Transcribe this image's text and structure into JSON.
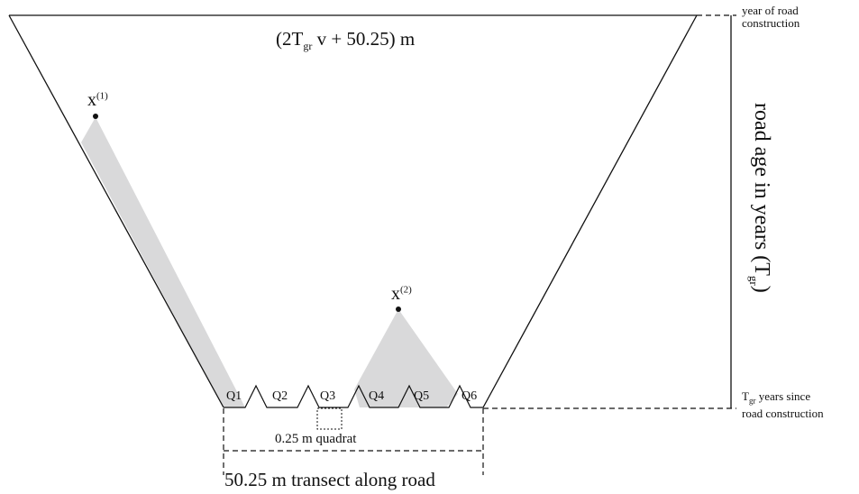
{
  "top_width_label": {
    "prefix": "(2T",
    "sub": "gr",
    "suffix": " v  + 50.25) m"
  },
  "year_label_line1": "year of road",
  "year_label_line2": "construction",
  "axis_label": {
    "main": "road age in years (T",
    "sub": "gr",
    "close": ")"
  },
  "point1": {
    "base": "x",
    "sup": "(1)"
  },
  "point2": {
    "base": "x",
    "sup": "(2)"
  },
  "quadrats": [
    "Q1",
    "Q2",
    "Q3",
    "Q4",
    "Q5",
    "Q6"
  ],
  "quadrat_size_label": "0.25 m quadrat",
  "transect_label": "50.25 m transect along road",
  "bottom_right_label": {
    "sub": "gr",
    "prefix": "T",
    "line1_rest": " years since",
    "line2": "road construction"
  },
  "colors": {
    "shade": "#d9d9da",
    "line": "#111111"
  }
}
